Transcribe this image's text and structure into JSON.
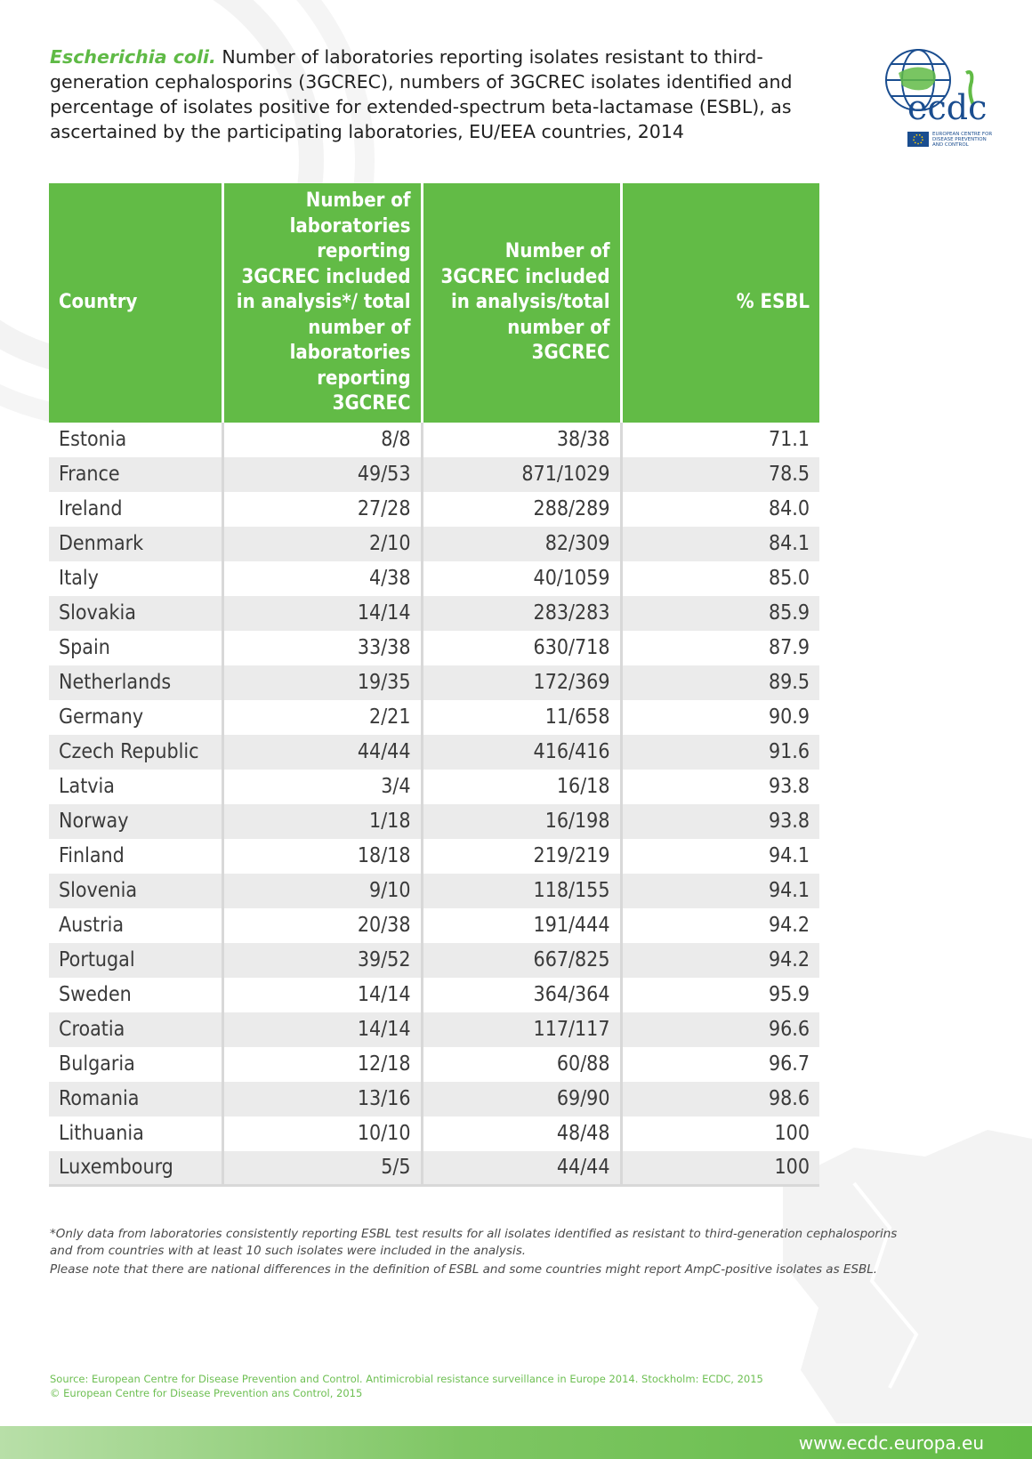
{
  "title": {
    "species": "Escherichia coli.",
    "text": " Number of laboratories reporting isolates resistant to third-generation cephalosporins (3GCREC), numbers of 3GCREC isolates identified and percentage of isolates positive for extended-spectrum beta-lactamase (ESBL), as ascertained by the participating laboratories, EU/EEA countries, 2014"
  },
  "logo": {
    "wordmark": "ecdc",
    "caption_1": "EUROPEAN CENTRE FOR",
    "caption_2": "DISEASE PREVENTION",
    "caption_3": "AND CONTROL"
  },
  "table": {
    "headers": [
      "Country",
      "Number of laboratories reporting 3GCREC included in analysis*/ total number of laboratories reporting 3GCREC",
      "Number of 3GCREC included in analysis/total number of 3GCREC",
      "% ESBL"
    ],
    "rows": [
      {
        "country": "Estonia",
        "labs": "8/8",
        "isolates": "38/38",
        "esbl": "71.1"
      },
      {
        "country": "France",
        "labs": "49/53",
        "isolates": "871/1029",
        "esbl": "78.5"
      },
      {
        "country": "Ireland",
        "labs": "27/28",
        "isolates": "288/289",
        "esbl": "84.0"
      },
      {
        "country": "Denmark",
        "labs": "2/10",
        "isolates": "82/309",
        "esbl": "84.1"
      },
      {
        "country": "Italy",
        "labs": "4/38",
        "isolates": "40/1059",
        "esbl": "85.0"
      },
      {
        "country": "Slovakia",
        "labs": "14/14",
        "isolates": "283/283",
        "esbl": "85.9"
      },
      {
        "country": "Spain",
        "labs": "33/38",
        "isolates": "630/718",
        "esbl": "87.9"
      },
      {
        "country": "Netherlands",
        "labs": "19/35",
        "isolates": "172/369",
        "esbl": "89.5"
      },
      {
        "country": "Germany",
        "labs": "2/21",
        "isolates": "11/658",
        "esbl": "90.9"
      },
      {
        "country": "Czech Republic",
        "labs": "44/44",
        "isolates": "416/416",
        "esbl": "91.6"
      },
      {
        "country": "Latvia",
        "labs": "3/4",
        "isolates": "16/18",
        "esbl": "93.8"
      },
      {
        "country": "Norway",
        "labs": "1/18",
        "isolates": "16/198",
        "esbl": "93.8"
      },
      {
        "country": "Finland",
        "labs": "18/18",
        "isolates": "219/219",
        "esbl": "94.1"
      },
      {
        "country": "Slovenia",
        "labs": "9/10",
        "isolates": "118/155",
        "esbl": "94.1"
      },
      {
        "country": "Austria",
        "labs": "20/38",
        "isolates": "191/444",
        "esbl": "94.2"
      },
      {
        "country": "Portugal",
        "labs": "39/52",
        "isolates": "667/825",
        "esbl": "94.2"
      },
      {
        "country": "Sweden",
        "labs": "14/14",
        "isolates": "364/364",
        "esbl": "95.9"
      },
      {
        "country": "Croatia",
        "labs": "14/14",
        "isolates": "117/117",
        "esbl": "96.6"
      },
      {
        "country": "Bulgaria",
        "labs": "12/18",
        "isolates": "60/88",
        "esbl": "96.7"
      },
      {
        "country": "Romania",
        "labs": "13/16",
        "isolates": "69/90",
        "esbl": "98.6"
      },
      {
        "country": "Lithuania",
        "labs": "10/10",
        "isolates": "48/48",
        "esbl": "100"
      },
      {
        "country": "Luxembourg",
        "labs": "5/5",
        "isolates": "44/44",
        "esbl": "100"
      }
    ]
  },
  "notes": {
    "footnote": "*Only data from laboratories consistently reporting ESBL test results for all isolates identified as resistant to third-generation cephalosporins and from countries with at least 10 such isolates were included in the analysis.",
    "disclaimer": "Please note that there are national differences in the definition of ESBL and some countries might report AmpC-positive isolates as ESBL."
  },
  "source": {
    "line1": "Source: European Centre for Disease Prevention and Control. Antimicrobial resistance surveillance in Europe 2014. Stockholm: ECDC, 2015",
    "line2": "© European Centre for Disease Prevention ans Control, 2015"
  },
  "footer": {
    "url": "www.ecdc.europa.eu"
  },
  "colors": {
    "brand_green": "#62bb46",
    "ecdc_blue": "#1a4d8f",
    "stripe_grey": "#ebebeb"
  }
}
